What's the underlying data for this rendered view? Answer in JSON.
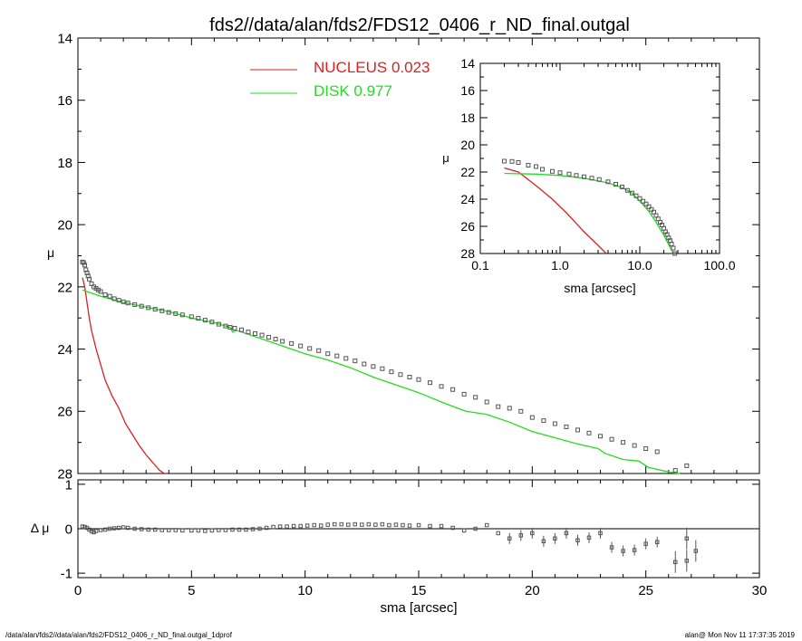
{
  "title": "fds2//data/alan/fds2/FDS12_0406_r_ND_final.outgal",
  "footer_left": "/data/alan/fds2//data/alan/fds2/FDS12_0406_r_ND_final.outgal_1dprof",
  "footer_right": "alan@  Mon Nov 11 17:37:35 2019",
  "colors": {
    "nucleus": "#dd2020",
    "disk": "#22dd22",
    "data": "#555555"
  },
  "legend": [
    {
      "label": "NUCLEUS  0.023",
      "color": "#dd2020"
    },
    {
      "label": "DISK  0.977",
      "color": "#22dd22"
    }
  ],
  "chart_data": [
    {
      "type": "scatter",
      "panel": "main",
      "xlabel": "sma [arcsec]",
      "ylabel": "μ",
      "xlim": [
        0,
        30
      ],
      "ylim": [
        28,
        14
      ],
      "x_ticks": [
        "0",
        "5",
        "10",
        "15",
        "20",
        "25",
        "30"
      ],
      "y_ticks": [
        "14",
        "16",
        "18",
        "20",
        "22",
        "24",
        "26",
        "28"
      ],
      "series": [
        {
          "name": "NUCLEUS  0.023",
          "kind": "line",
          "x": [
            0.2,
            0.3,
            0.4,
            0.5,
            0.6,
            0.8,
            1.0,
            1.2,
            1.5,
            1.8,
            2.1,
            2.4,
            2.7,
            3.0,
            3.3,
            3.6,
            3.8
          ],
          "y": [
            21.7,
            22.0,
            22.5,
            23.0,
            23.4,
            24.0,
            24.5,
            25.0,
            25.5,
            25.9,
            26.4,
            26.75,
            27.1,
            27.4,
            27.65,
            27.9,
            28.0
          ]
        },
        {
          "name": "DISK  0.977",
          "kind": "line",
          "x": [
            0.2,
            1,
            2,
            3,
            4,
            5,
            6,
            6.7,
            6.8,
            7,
            8,
            9,
            10,
            11,
            12,
            13,
            14,
            15,
            16,
            16.9,
            17.1,
            18,
            19,
            20,
            21,
            22,
            22.9,
            23.2,
            24,
            24.7,
            25.1,
            26,
            26.5
          ],
          "y": [
            22.1,
            22.3,
            22.5,
            22.65,
            22.8,
            23.0,
            23.15,
            23.3,
            23.45,
            23.4,
            23.65,
            23.9,
            24.15,
            24.35,
            24.6,
            24.9,
            25.15,
            25.4,
            25.7,
            25.95,
            26.0,
            26.1,
            26.35,
            26.65,
            26.85,
            27.05,
            27.2,
            27.35,
            27.55,
            27.6,
            27.8,
            27.95,
            28.0
          ]
        },
        {
          "name": "",
          "kind": "points",
          "x": [
            0.2,
            0.25,
            0.3,
            0.35,
            0.4,
            0.45,
            0.5,
            0.6,
            0.7,
            0.8,
            0.9,
            1.0,
            1.2,
            1.4,
            1.6,
            1.8,
            2.0,
            2.2,
            2.5,
            2.8,
            3.1,
            3.4,
            3.7,
            4.0,
            4.3,
            4.6,
            5.0,
            5.3,
            5.6,
            5.9,
            6.2,
            6.5,
            6.7,
            6.9,
            7.2,
            7.5,
            7.8,
            8.1,
            8.4,
            8.7,
            9.0,
            9.4,
            9.8,
            10.2,
            10.6,
            11.0,
            11.4,
            11.8,
            12.2,
            12.6,
            13.0,
            13.4,
            13.8,
            14.2,
            14.6,
            15.0,
            15.5,
            16.0,
            16.5,
            17.0,
            17.5,
            18.0,
            18.5,
            19.0,
            19.5,
            20.0,
            20.5,
            21.0,
            21.5,
            22.0,
            22.5,
            23.0,
            23.5,
            24.0,
            24.5,
            25.0,
            25.5,
            26.3,
            26.8
          ],
          "y": [
            21.2,
            21.22,
            21.3,
            21.45,
            21.55,
            21.65,
            21.75,
            21.9,
            22.0,
            22.05,
            22.1,
            22.15,
            22.25,
            22.3,
            22.38,
            22.43,
            22.48,
            22.52,
            22.57,
            22.62,
            22.67,
            22.72,
            22.77,
            22.82,
            22.86,
            22.9,
            22.96,
            23.01,
            23.07,
            23.13,
            23.2,
            23.26,
            23.3,
            23.33,
            23.38,
            23.45,
            23.5,
            23.55,
            23.62,
            23.68,
            23.75,
            23.82,
            23.9,
            23.98,
            24.05,
            24.15,
            24.22,
            24.3,
            24.38,
            24.48,
            24.56,
            24.63,
            24.73,
            24.82,
            24.9,
            24.98,
            25.08,
            25.2,
            25.3,
            25.45,
            25.55,
            25.7,
            25.85,
            25.9,
            26.0,
            26.2,
            26.3,
            26.4,
            26.5,
            26.6,
            26.7,
            26.8,
            26.9,
            27.0,
            27.1,
            27.2,
            27.3,
            27.9,
            27.75
          ]
        }
      ]
    },
    {
      "type": "scatter",
      "panel": "inset",
      "xlabel": "sma [arcsec]",
      "ylabel": "μ",
      "xscale": "log",
      "xlim": [
        0.1,
        100
      ],
      "ylim": [
        28,
        14
      ],
      "x_ticks": [
        "0.1",
        "1.0",
        "10.0",
        "100.0"
      ],
      "y_ticks": [
        "14",
        "16",
        "18",
        "20",
        "22",
        "24",
        "26",
        "28"
      ],
      "series": [
        {
          "name": "NUCLEUS  0.023",
          "kind": "line",
          "x": [
            0.2,
            0.3,
            0.5,
            0.8,
            1.2,
            2.0,
            3.0,
            3.8
          ],
          "y": [
            21.7,
            22.0,
            23.0,
            24.0,
            25.0,
            26.4,
            27.4,
            28.0
          ]
        },
        {
          "name": "DISK  0.977",
          "kind": "line",
          "x": [
            0.2,
            0.5,
            1,
            2,
            4,
            6,
            8,
            10,
            13,
            16,
            20,
            24,
            26.5
          ],
          "y": [
            22.1,
            22.15,
            22.25,
            22.45,
            22.8,
            23.15,
            23.55,
            24.15,
            24.9,
            25.7,
            26.65,
            27.55,
            28.0
          ]
        },
        {
          "name": "",
          "kind": "points",
          "x": [
            0.2,
            0.25,
            0.3,
            0.4,
            0.5,
            0.6,
            0.8,
            1.0,
            1.3,
            1.6,
            2.0,
            2.5,
            3.1,
            4.0,
            5.0,
            6.0,
            7.0,
            8.0,
            9.0,
            10.0,
            11.0,
            12.0,
            13.0,
            14.0,
            15.0,
            16.0,
            17.0,
            18.0,
            19.0,
            20.0,
            21.0,
            22.0,
            23.0,
            24.0,
            25.0,
            26.3,
            27.5
          ],
          "y": [
            21.2,
            21.22,
            21.3,
            21.5,
            21.6,
            21.8,
            21.95,
            22.05,
            22.15,
            22.25,
            22.35,
            22.45,
            22.55,
            22.72,
            22.9,
            23.1,
            23.35,
            23.55,
            23.75,
            23.95,
            24.15,
            24.35,
            24.55,
            24.75,
            24.95,
            25.2,
            25.45,
            25.7,
            25.9,
            26.15,
            26.4,
            26.6,
            26.85,
            27.05,
            27.3,
            27.6,
            28.0
          ]
        }
      ]
    },
    {
      "type": "scatter",
      "panel": "residuals",
      "xlabel": "sma [arcsec]",
      "ylabel": "Δ μ",
      "xlim": [
        0,
        30
      ],
      "ylim": [
        -1.1,
        1.1
      ],
      "x_ticks": [
        "0",
        "5",
        "10",
        "15",
        "20",
        "25",
        "30"
      ],
      "y_ticks": [
        "1",
        "0",
        "-1"
      ],
      "series": [
        {
          "name": "",
          "kind": "points",
          "x": [
            0.2,
            0.3,
            0.4,
            0.5,
            0.6,
            0.7,
            0.8,
            1.0,
            1.2,
            1.4,
            1.6,
            1.8,
            2.0,
            2.2,
            2.5,
            2.8,
            3.1,
            3.4,
            3.7,
            4.0,
            4.3,
            4.6,
            5.0,
            5.3,
            5.6,
            5.9,
            6.2,
            6.5,
            6.8,
            7.1,
            7.4,
            7.7,
            8.0,
            8.3,
            8.6,
            8.9,
            9.2,
            9.5,
            9.8,
            10.1,
            10.4,
            10.7,
            11.0,
            11.3,
            11.6,
            11.9,
            12.2,
            12.5,
            12.8,
            13.1,
            13.4,
            13.7,
            14.0,
            14.3,
            14.6,
            15.0,
            15.5,
            16.0,
            16.5,
            17.0,
            17.5,
            18.0,
            18.5,
            19.0,
            19.5,
            20.0,
            20.5,
            21.0,
            21.5,
            22.0,
            22.5,
            23.0,
            23.5,
            24.0,
            24.5,
            25.0,
            25.5,
            26.3,
            26.8,
            26.8,
            27.2
          ],
          "y": [
            0.05,
            0.04,
            0.02,
            -0.02,
            -0.06,
            -0.08,
            -0.05,
            -0.03,
            -0.02,
            0.0,
            0.01,
            0.02,
            0.03,
            0.02,
            0.0,
            -0.01,
            -0.02,
            -0.02,
            -0.03,
            -0.03,
            -0.03,
            -0.04,
            -0.04,
            -0.04,
            -0.05,
            -0.04,
            -0.03,
            -0.03,
            -0.02,
            -0.02,
            -0.02,
            -0.01,
            0.0,
            0.02,
            0.04,
            0.05,
            0.05,
            0.06,
            0.06,
            0.07,
            0.08,
            0.07,
            0.09,
            0.1,
            0.1,
            0.09,
            0.1,
            0.09,
            0.1,
            0.09,
            0.1,
            0.08,
            0.09,
            0.08,
            0.07,
            0.08,
            0.06,
            0.06,
            0.02,
            -0.04,
            0.0,
            0.08,
            -0.1,
            -0.22,
            -0.15,
            -0.1,
            -0.28,
            -0.22,
            -0.1,
            -0.26,
            -0.2,
            -0.1,
            -0.42,
            -0.5,
            -0.48,
            -0.34,
            -0.3,
            -0.75,
            -0.72,
            -0.22,
            -0.5
          ]
        }
      ]
    }
  ]
}
